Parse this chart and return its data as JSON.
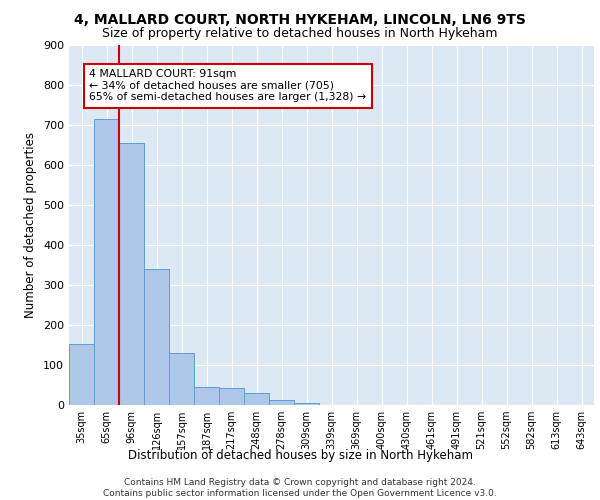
{
  "title1": "4, MALLARD COURT, NORTH HYKEHAM, LINCOLN, LN6 9TS",
  "title2": "Size of property relative to detached houses in North Hykeham",
  "xlabel": "Distribution of detached houses by size in North Hykeham",
  "ylabel": "Number of detached properties",
  "footer1": "Contains HM Land Registry data © Crown copyright and database right 2024.",
  "footer2": "Contains public sector information licensed under the Open Government Licence v3.0.",
  "bar_labels": [
    "35sqm",
    "65sqm",
    "96sqm",
    "126sqm",
    "157sqm",
    "187sqm",
    "217sqm",
    "248sqm",
    "278sqm",
    "309sqm",
    "339sqm",
    "369sqm",
    "400sqm",
    "430sqm",
    "461sqm",
    "491sqm",
    "521sqm",
    "552sqm",
    "582sqm",
    "613sqm",
    "643sqm"
  ],
  "bar_values": [
    152,
    714,
    655,
    340,
    130,
    44,
    42,
    30,
    12,
    5,
    0,
    0,
    0,
    0,
    0,
    0,
    0,
    0,
    0,
    0,
    0
  ],
  "bar_color": "#aec6e8",
  "bar_edge_color": "#5a9fd4",
  "property_line_x": 2,
  "annotation_text": "4 MALLARD COURT: 91sqm\n← 34% of detached houses are smaller (705)\n65% of semi-detached houses are larger (1,328) →",
  "annotation_box_color": "#ffffff",
  "annotation_box_edge_color": "#cc0000",
  "property_line_color": "#cc0000",
  "ylim": [
    0,
    900
  ],
  "yticks": [
    0,
    100,
    200,
    300,
    400,
    500,
    600,
    700,
    800,
    900
  ],
  "bg_color": "#dde8f5",
  "title1_fontsize": 10,
  "title2_fontsize": 9,
  "xlabel_fontsize": 8.5,
  "ylabel_fontsize": 8.5,
  "footer_fontsize": 6.5
}
